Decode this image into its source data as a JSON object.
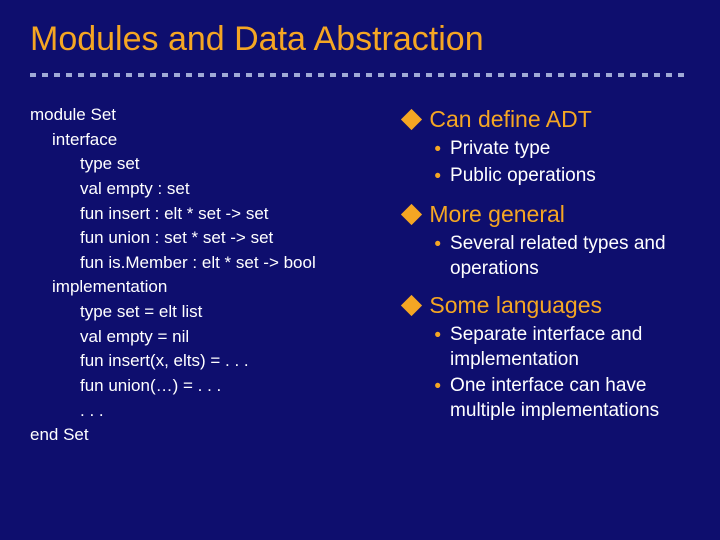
{
  "title": "Modules and Data Abstraction",
  "colors": {
    "background": "#0e0e6e",
    "accent": "#f5a623",
    "text": "#ffffff",
    "divider": "#9fa9d6"
  },
  "code": {
    "l0": "module Set",
    "l1": "interface",
    "l2": "type set",
    "l3": "val empty : set",
    "l4": "fun insert : elt * set -> set",
    "l5": "fun union : set * set -> set",
    "l6": "fun is.Member : elt * set -> bool",
    "l7": "implementation",
    "l8": "type set = elt list",
    "l9": "val empty = nil",
    "l10": "fun insert(x, elts) = . . .",
    "l11": "fun union(…) = . . .",
    "l12": ". . .",
    "l13": "end Set"
  },
  "bullets": [
    {
      "text": "Can define ADT",
      "subs": [
        "Private type",
        "Public operations"
      ]
    },
    {
      "text": "More general",
      "subs": [
        "Several related types and operations"
      ]
    },
    {
      "text": "Some languages",
      "subs": [
        "Separate interface and implementation",
        "One interface can have multiple implementations"
      ]
    }
  ]
}
